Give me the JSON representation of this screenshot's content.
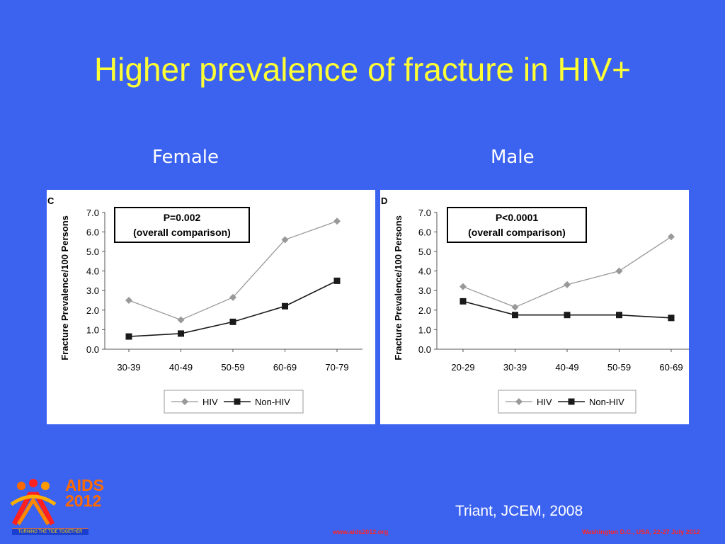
{
  "slide": {
    "title": "Higher prevalence of fracture in HIV+",
    "citation": "Triant, JCEM, 2008",
    "footer_left": "www.aids2012.org",
    "footer_right": "Washington D.C., USA, 22-27 July 2012",
    "logo": {
      "line1": "AIDS",
      "line2": "2012",
      "tagline": "TURNING THE TIDE TOGETHER"
    }
  },
  "colors": {
    "background": "#3c63f0",
    "title": "#ffff33",
    "hiv_series": "#999999",
    "nonhiv_series": "#1a1a1a",
    "footer": "#ff2222"
  },
  "chart_data": [
    {
      "type": "line",
      "panel_heading": "Female",
      "panel_letter": "C",
      "categories": [
        "30-39",
        "40-49",
        "50-59",
        "60-69",
        "70-79"
      ],
      "series": [
        {
          "name": "HIV",
          "values": [
            2.5,
            1.5,
            2.65,
            5.6,
            6.55
          ]
        },
        {
          "name": "Non-HIV",
          "values": [
            0.65,
            0.8,
            1.4,
            2.2,
            3.5
          ]
        }
      ],
      "ylabel": "Fracture Prevalence/100 Persons",
      "ylim": [
        0,
        7
      ],
      "yticks": [
        "0.0",
        "1.0",
        "2.0",
        "3.0",
        "4.0",
        "5.0",
        "6.0",
        "7.0"
      ],
      "annotation": {
        "line1": "P=0.002",
        "line2": "(overall comparison)"
      },
      "legend": "bottom",
      "grid": false
    },
    {
      "type": "line",
      "panel_heading": "Male",
      "panel_letter": "D",
      "categories": [
        "20-29",
        "30-39",
        "40-49",
        "50-59",
        "60-69"
      ],
      "series": [
        {
          "name": "HIV",
          "values": [
            3.2,
            2.15,
            3.3,
            4.0,
            5.75
          ]
        },
        {
          "name": "Non-HIV",
          "values": [
            2.45,
            1.75,
            1.75,
            1.75,
            1.6
          ]
        }
      ],
      "ylabel": "Fracture Prevalence/100 Persons",
      "ylim": [
        0,
        7
      ],
      "yticks": [
        "0.0",
        "1.0",
        "2.0",
        "3.0",
        "4.0",
        "5.0",
        "6.0",
        "7.0"
      ],
      "annotation": {
        "line1": "P<0.0001",
        "line2": "(overall comparison)"
      },
      "legend": "bottom",
      "grid": false
    }
  ]
}
